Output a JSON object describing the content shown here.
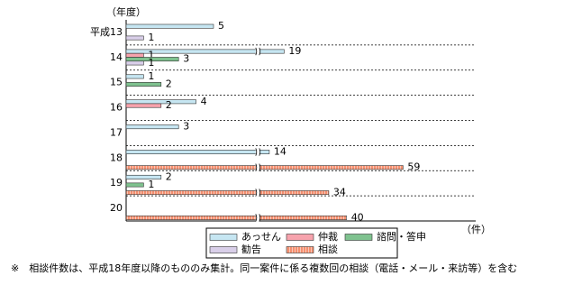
{
  "chart_data": {
    "type": "bar",
    "orientation": "horizontal",
    "y_axis_label": "（年度）",
    "x_axis_label": "（件）",
    "categories": [
      "平成13",
      "14",
      "15",
      "16",
      "17",
      "18",
      "19",
      "20"
    ],
    "series": [
      {
        "name": "あっせん",
        "color": "#c6e6f2",
        "values": [
          5,
          19,
          1,
          4,
          3,
          14,
          2,
          null
        ]
      },
      {
        "name": "仲裁",
        "color": "#f7a3ad",
        "values": [
          null,
          1,
          null,
          2,
          null,
          null,
          null,
          null
        ]
      },
      {
        "name": "諮問・答申",
        "color": "#7fc28f",
        "values": [
          null,
          3,
          2,
          null,
          null,
          null,
          1,
          null
        ]
      },
      {
        "name": "勧告",
        "color": "#d9cfe9",
        "values": [
          1,
          1,
          null,
          null,
          null,
          null,
          null,
          null
        ]
      },
      {
        "name": "相談",
        "color": "#f58f6f",
        "hatched": true,
        "values": [
          null,
          null,
          null,
          null,
          null,
          59,
          34,
          40
        ]
      }
    ],
    "legend": "bottom",
    "note": "※　相談件数は、平成18年度以降のもののみ集計。同一案件に係る複数回の相談（電話・メール・来訪等）を含む"
  }
}
